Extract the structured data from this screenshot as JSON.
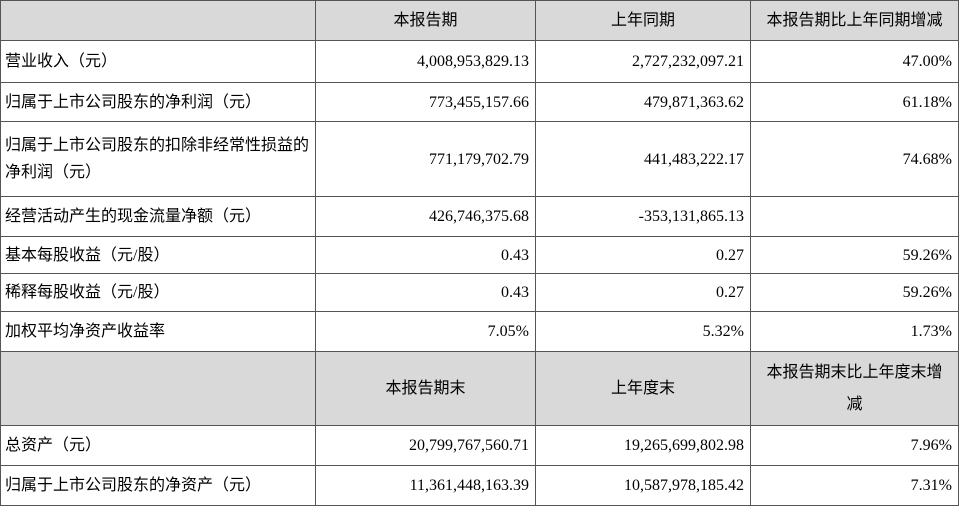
{
  "table": {
    "header": [
      "本报告期",
      "上年同期",
      "本报告期比上年同期增减"
    ],
    "rows": [
      [
        "营业收入（元）",
        "4,008,953,829.13",
        "2,727,232,097.21",
        "47.00%"
      ],
      [
        "归属于上市公司股东的净利润（元）",
        "773,455,157.66",
        "479,871,363.62",
        "61.18%"
      ],
      [
        "归属于上市公司股东的扣除非经常性损益的净利润（元）",
        "771,179,702.79",
        "441,483,222.17",
        "74.68%"
      ],
      [
        "经营活动产生的现金流量净额（元）",
        "426,746,375.68",
        "-353,131,865.13"
      ],
      [
        "基本每股收益（元/股）",
        "0.43",
        "0.27",
        "59.26%"
      ],
      [
        "稀释每股收益（元/股）",
        "0.43",
        "0.27",
        "59.26%"
      ],
      [
        "加权平均净资产收益率",
        "7.05%",
        "5.32%",
        "1.73%"
      ]
    ],
    "header2": [
      "本报告期末",
      "上年度末",
      "本报告期末比上年度末增减"
    ],
    "rows2": [
      [
        "总资产（元）",
        "20,799,767,560.71",
        "19,265,699,802.98",
        "7.96%"
      ],
      [
        "归属于上市公司股东的净资产（元）",
        "11,361,448,163.39",
        "10,587,978,185.42",
        "7.31%"
      ]
    ]
  }
}
